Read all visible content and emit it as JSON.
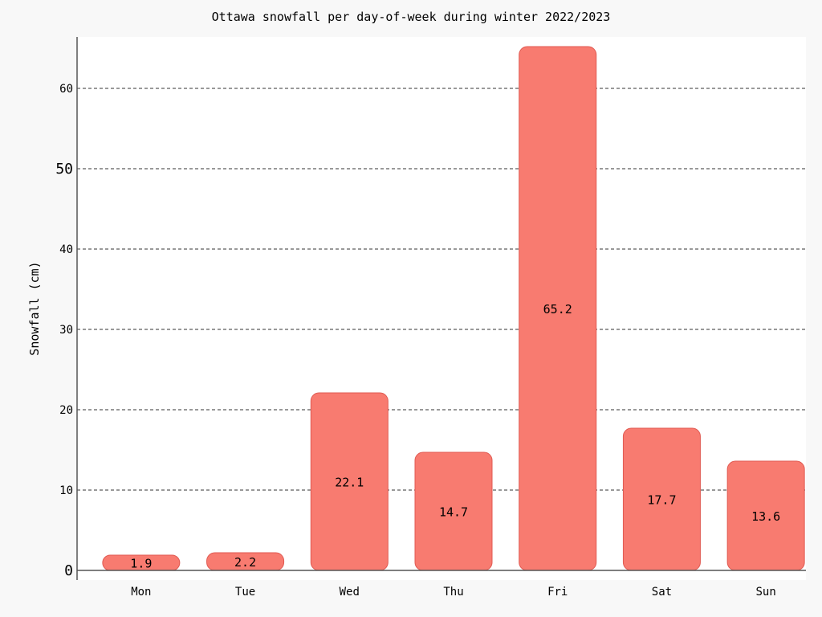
{
  "chart_data": {
    "type": "bar",
    "title": "Ottawa snowfall per day-of-week during winter 2022/2023",
    "xlabel": "",
    "ylabel": "Snowfall (cm)",
    "categories": [
      "Mon",
      "Tue",
      "Wed",
      "Thu",
      "Fri",
      "Sat",
      "Sun"
    ],
    "values": [
      1.9,
      2.2,
      22.1,
      14.7,
      65.2,
      17.7,
      13.6
    ],
    "data_labels": [
      "1.9",
      "2.2",
      "22.1",
      "14.7",
      "65.2",
      "17.7",
      "13.6"
    ],
    "ylim": [
      0,
      66
    ],
    "yticks": [
      0,
      10,
      20,
      30,
      40,
      50,
      60
    ],
    "grid": true,
    "bar_color": "#f87b70",
    "bar_edge_color": "#e05a52"
  }
}
